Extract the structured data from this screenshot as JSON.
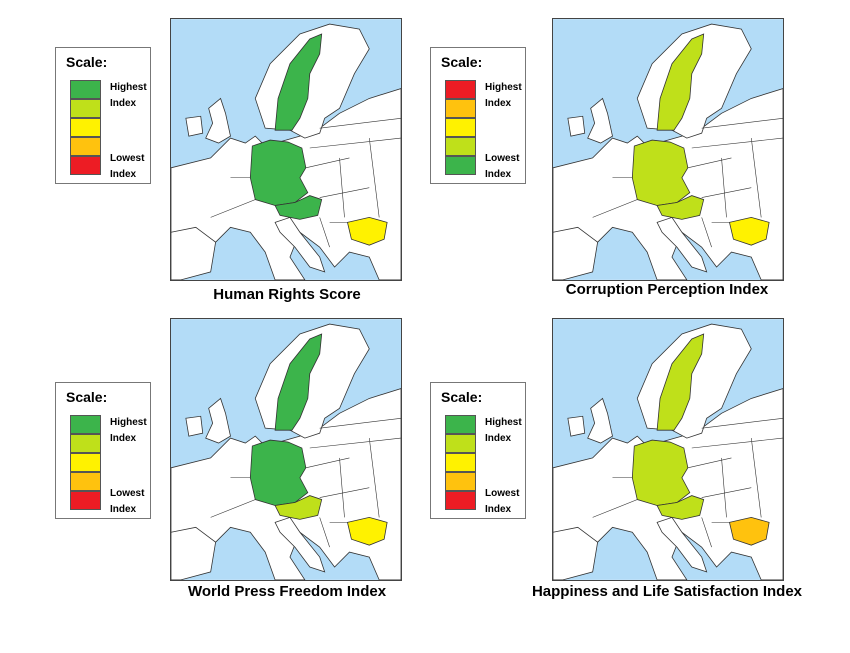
{
  "panels": [
    {
      "title": "Human Rights Score",
      "legend": {
        "label": "Scale:",
        "top": "Highest\nIndex",
        "bottom": "Lowest\nIndex",
        "top_label_1": "Highest",
        "top_label_2": "Index",
        "bottom_label_1": "Lowest",
        "bottom_label_2": "Index",
        "colors": [
          "#3cb44b",
          "#bfe01a",
          "#fff200",
          "#ffc20e",
          "#ed1c24"
        ]
      },
      "countries": {
        "sweden": "#3cb44b",
        "germany": "#3cb44b",
        "austria": "#3cb44b",
        "bulgaria": "#fff200"
      }
    },
    {
      "title": "Corruption Perception Index",
      "legend": {
        "label": "Scale:",
        "top_label_1": "Highest",
        "top_label_2": "Index",
        "bottom_label_1": "Lowest",
        "bottom_label_2": "Index",
        "colors": [
          "#ed1c24",
          "#ffc20e",
          "#fff200",
          "#bfe01a",
          "#3cb44b"
        ]
      },
      "countries": {
        "sweden": "#bfe01a",
        "germany": "#bfe01a",
        "austria": "#bfe01a",
        "bulgaria": "#fff200"
      }
    },
    {
      "title": "World Press Freedom Index",
      "legend": {
        "label": "Scale:",
        "top_label_1": "Highest",
        "top_label_2": "Index",
        "bottom_label_1": "Lowest",
        "bottom_label_2": "Index",
        "colors": [
          "#3cb44b",
          "#bfe01a",
          "#fff200",
          "#ffc20e",
          "#ed1c24"
        ]
      },
      "countries": {
        "sweden": "#3cb44b",
        "germany": "#3cb44b",
        "austria": "#bfe01a",
        "bulgaria": "#fff200"
      }
    },
    {
      "title": "Happiness and Life Satisfaction Index",
      "legend": {
        "label": "Scale:",
        "top_label_1": "Highest",
        "top_label_2": "Index",
        "bottom_label_1": "Lowest",
        "bottom_label_2": "Index",
        "colors": [
          "#3cb44b",
          "#bfe01a",
          "#fff200",
          "#ffc20e",
          "#ed1c24"
        ]
      },
      "countries": {
        "sweden": "#bfe01a",
        "germany": "#bfe01a",
        "austria": "#bfe01a",
        "bulgaria": "#ffc20e"
      }
    }
  ],
  "colors": {
    "sea": "#b3dcf7",
    "land": "#ffffff",
    "border": "#333333"
  }
}
